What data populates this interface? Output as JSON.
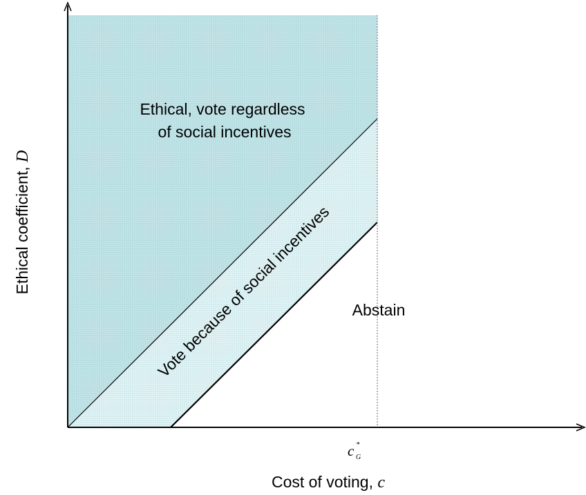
{
  "diagram": {
    "regions": {
      "ethical": {
        "line1": "Ethical, vote regardless",
        "line2": "of social incentives",
        "fill_color": "#b9dfe3"
      },
      "social": {
        "label": "Vote because of social incentives",
        "fill_color": "#d6edf0"
      },
      "abstain": {
        "label": "Abstain",
        "fill_color": "#ffffff"
      }
    },
    "axes": {
      "x": {
        "label_prefix": "Cost of voting, ",
        "label_var": "c"
      },
      "y": {
        "label_prefix": "Ethical coefficient, ",
        "label_var": "D"
      }
    },
    "threshold": {
      "base": "c",
      "subscript": "G",
      "superscript": "*"
    }
  }
}
